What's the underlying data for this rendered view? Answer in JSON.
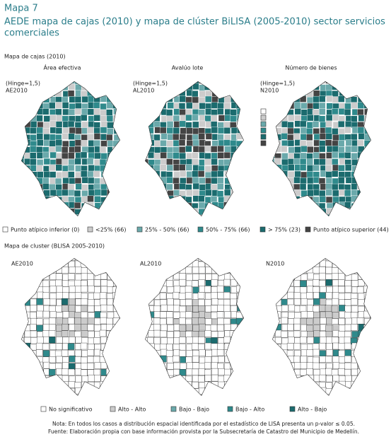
{
  "header": {
    "label": "Mapa 7",
    "title_lines": [
      "AEDE mapa de cajas (2010) y mapa de clúster BiLISA (2005-2010) sector servicios",
      "comerciales"
    ]
  },
  "box_maps": {
    "title": "Mapa de cajas (2010)",
    "maps": [
      {
        "title": "Área efectiva",
        "hinge": "(Hinge=1,5)",
        "code": "AE2010"
      },
      {
        "title": "Avalúo lote",
        "hinge": "(Hinge=1,5)",
        "code": "AL2010"
      },
      {
        "title": "Número de bienes",
        "hinge": "(Hinge=1,5)",
        "code": "N2010"
      }
    ],
    "legend": [
      "Punto atípico inferior (0)",
      "<25% (66)",
      "25% - 50% (66)",
      "50% - 75% (66)",
      "> 75% (23)",
      "Punto atípico superior (44)"
    ]
  },
  "cluster_maps": {
    "title": "Mapa de cluster (BLISA 2005-2010)",
    "maps": [
      "AE2010",
      "AL2010",
      "N2010"
    ],
    "legend": [
      "No significativo",
      "Alto - Alto",
      "Bajo - Bajo",
      "Bajo - Alto",
      "Alto - Bajo"
    ]
  },
  "notes": [
    "Nota: En todos los casos a distribución espacial identificada por el estadístico de LISA presenta un p-valor ≤ 0.05.",
    "Fuente: Elaboración propia con base información provista por la Subsecretaría de Catastro del Municipio de Medellín."
  ]
}
